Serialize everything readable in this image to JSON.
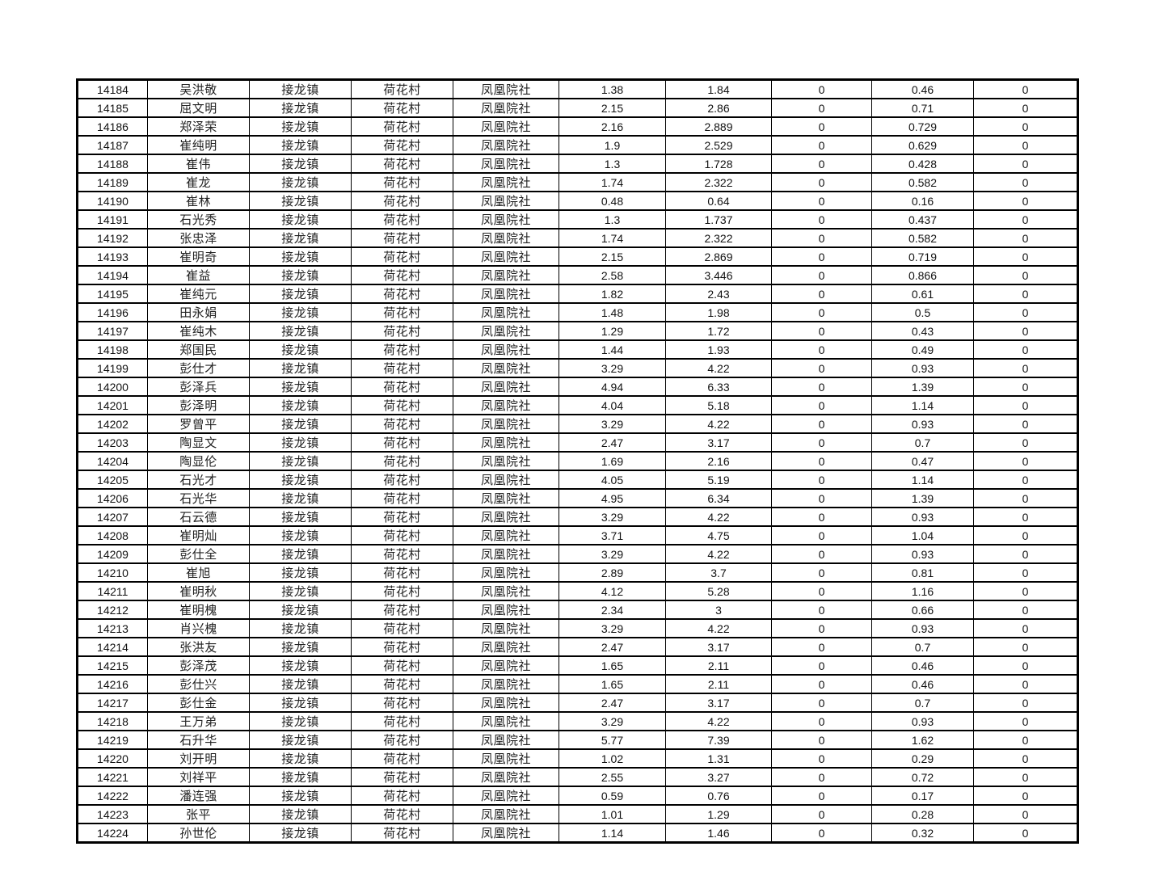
{
  "page": {
    "background_color": "#ffffff",
    "border_color": "#000000"
  },
  "table": {
    "column_keys": [
      "record-id",
      "person-name",
      "town",
      "village",
      "community",
      "value-1",
      "value-2",
      "value-3",
      "value-4",
      "value-5"
    ],
    "column_types": [
      "num",
      "cjk",
      "cjk",
      "cjk",
      "cjk",
      "num",
      "num",
      "num",
      "num",
      "num"
    ],
    "rows": [
      [
        "14184",
        "吴洪敬",
        "接龙镇",
        "荷花村",
        "凤凰院社",
        "1.38",
        "1.84",
        "0",
        "0.46",
        "0"
      ],
      [
        "14185",
        "屈文明",
        "接龙镇",
        "荷花村",
        "凤凰院社",
        "2.15",
        "2.86",
        "0",
        "0.71",
        "0"
      ],
      [
        "14186",
        "郑泽荣",
        "接龙镇",
        "荷花村",
        "凤凰院社",
        "2.16",
        "2.889",
        "0",
        "0.729",
        "0"
      ],
      [
        "14187",
        "崔纯明",
        "接龙镇",
        "荷花村",
        "凤凰院社",
        "1.9",
        "2.529",
        "0",
        "0.629",
        "0"
      ],
      [
        "14188",
        "崔伟",
        "接龙镇",
        "荷花村",
        "凤凰院社",
        "1.3",
        "1.728",
        "0",
        "0.428",
        "0"
      ],
      [
        "14189",
        "崔龙",
        "接龙镇",
        "荷花村",
        "凤凰院社",
        "1.74",
        "2.322",
        "0",
        "0.582",
        "0"
      ],
      [
        "14190",
        "崔林",
        "接龙镇",
        "荷花村",
        "凤凰院社",
        "0.48",
        "0.64",
        "0",
        "0.16",
        "0"
      ],
      [
        "14191",
        "石光秀",
        "接龙镇",
        "荷花村",
        "凤凰院社",
        "1.3",
        "1.737",
        "0",
        "0.437",
        "0"
      ],
      [
        "14192",
        "张忠泽",
        "接龙镇",
        "荷花村",
        "凤凰院社",
        "1.74",
        "2.322",
        "0",
        "0.582",
        "0"
      ],
      [
        "14193",
        "崔明奇",
        "接龙镇",
        "荷花村",
        "凤凰院社",
        "2.15",
        "2.869",
        "0",
        "0.719",
        "0"
      ],
      [
        "14194",
        "崔益",
        "接龙镇",
        "荷花村",
        "凤凰院社",
        "2.58",
        "3.446",
        "0",
        "0.866",
        "0"
      ],
      [
        "14195",
        "崔纯元",
        "接龙镇",
        "荷花村",
        "凤凰院社",
        "1.82",
        "2.43",
        "0",
        "0.61",
        "0"
      ],
      [
        "14196",
        "田永娟",
        "接龙镇",
        "荷花村",
        "凤凰院社",
        "1.48",
        "1.98",
        "0",
        "0.5",
        "0"
      ],
      [
        "14197",
        "崔纯木",
        "接龙镇",
        "荷花村",
        "凤凰院社",
        "1.29",
        "1.72",
        "0",
        "0.43",
        "0"
      ],
      [
        "14198",
        "郑国民",
        "接龙镇",
        "荷花村",
        "凤凰院社",
        "1.44",
        "1.93",
        "0",
        "0.49",
        "0"
      ],
      [
        "14199",
        "彭仕才",
        "接龙镇",
        "荷花村",
        "凤凰院社",
        "3.29",
        "4.22",
        "0",
        "0.93",
        "0"
      ],
      [
        "14200",
        "彭泽兵",
        "接龙镇",
        "荷花村",
        "凤凰院社",
        "4.94",
        "6.33",
        "0",
        "1.39",
        "0"
      ],
      [
        "14201",
        "彭泽明",
        "接龙镇",
        "荷花村",
        "凤凰院社",
        "4.04",
        "5.18",
        "0",
        "1.14",
        "0"
      ],
      [
        "14202",
        "罗曾平",
        "接龙镇",
        "荷花村",
        "凤凰院社",
        "3.29",
        "4.22",
        "0",
        "0.93",
        "0"
      ],
      [
        "14203",
        "陶显文",
        "接龙镇",
        "荷花村",
        "凤凰院社",
        "2.47",
        "3.17",
        "0",
        "0.7",
        "0"
      ],
      [
        "14204",
        "陶显伦",
        "接龙镇",
        "荷花村",
        "凤凰院社",
        "1.69",
        "2.16",
        "0",
        "0.47",
        "0"
      ],
      [
        "14205",
        "石光才",
        "接龙镇",
        "荷花村",
        "凤凰院社",
        "4.05",
        "5.19",
        "0",
        "1.14",
        "0"
      ],
      [
        "14206",
        "石光华",
        "接龙镇",
        "荷花村",
        "凤凰院社",
        "4.95",
        "6.34",
        "0",
        "1.39",
        "0"
      ],
      [
        "14207",
        "石云德",
        "接龙镇",
        "荷花村",
        "凤凰院社",
        "3.29",
        "4.22",
        "0",
        "0.93",
        "0"
      ],
      [
        "14208",
        "崔明灿",
        "接龙镇",
        "荷花村",
        "凤凰院社",
        "3.71",
        "4.75",
        "0",
        "1.04",
        "0"
      ],
      [
        "14209",
        "彭仕全",
        "接龙镇",
        "荷花村",
        "凤凰院社",
        "3.29",
        "4.22",
        "0",
        "0.93",
        "0"
      ],
      [
        "14210",
        "崔旭",
        "接龙镇",
        "荷花村",
        "凤凰院社",
        "2.89",
        "3.7",
        "0",
        "0.81",
        "0"
      ],
      [
        "14211",
        "崔明秋",
        "接龙镇",
        "荷花村",
        "凤凰院社",
        "4.12",
        "5.28",
        "0",
        "1.16",
        "0"
      ],
      [
        "14212",
        "崔明槐",
        "接龙镇",
        "荷花村",
        "凤凰院社",
        "2.34",
        "3",
        "0",
        "0.66",
        "0"
      ],
      [
        "14213",
        "肖兴槐",
        "接龙镇",
        "荷花村",
        "凤凰院社",
        "3.29",
        "4.22",
        "0",
        "0.93",
        "0"
      ],
      [
        "14214",
        "张洪友",
        "接龙镇",
        "荷花村",
        "凤凰院社",
        "2.47",
        "3.17",
        "0",
        "0.7",
        "0"
      ],
      [
        "14215",
        "彭泽茂",
        "接龙镇",
        "荷花村",
        "凤凰院社",
        "1.65",
        "2.11",
        "0",
        "0.46",
        "0"
      ],
      [
        "14216",
        "彭仕兴",
        "接龙镇",
        "荷花村",
        "凤凰院社",
        "1.65",
        "2.11",
        "0",
        "0.46",
        "0"
      ],
      [
        "14217",
        "彭仕金",
        "接龙镇",
        "荷花村",
        "凤凰院社",
        "2.47",
        "3.17",
        "0",
        "0.7",
        "0"
      ],
      [
        "14218",
        "王万弟",
        "接龙镇",
        "荷花村",
        "凤凰院社",
        "3.29",
        "4.22",
        "0",
        "0.93",
        "0"
      ],
      [
        "14219",
        "石升华",
        "接龙镇",
        "荷花村",
        "凤凰院社",
        "5.77",
        "7.39",
        "0",
        "1.62",
        "0"
      ],
      [
        "14220",
        "刘开明",
        "接龙镇",
        "荷花村",
        "凤凰院社",
        "1.02",
        "1.31",
        "0",
        "0.29",
        "0"
      ],
      [
        "14221",
        "刘祥平",
        "接龙镇",
        "荷花村",
        "凤凰院社",
        "2.55",
        "3.27",
        "0",
        "0.72",
        "0"
      ],
      [
        "14222",
        "潘连强",
        "接龙镇",
        "荷花村",
        "凤凰院社",
        "0.59",
        "0.76",
        "0",
        "0.17",
        "0"
      ],
      [
        "14223",
        "张平",
        "接龙镇",
        "荷花村",
        "凤凰院社",
        "1.01",
        "1.29",
        "0",
        "0.28",
        "0"
      ],
      [
        "14224",
        "孙世伦",
        "接龙镇",
        "荷花村",
        "凤凰院社",
        "1.14",
        "1.46",
        "0",
        "0.32",
        "0"
      ]
    ]
  }
}
